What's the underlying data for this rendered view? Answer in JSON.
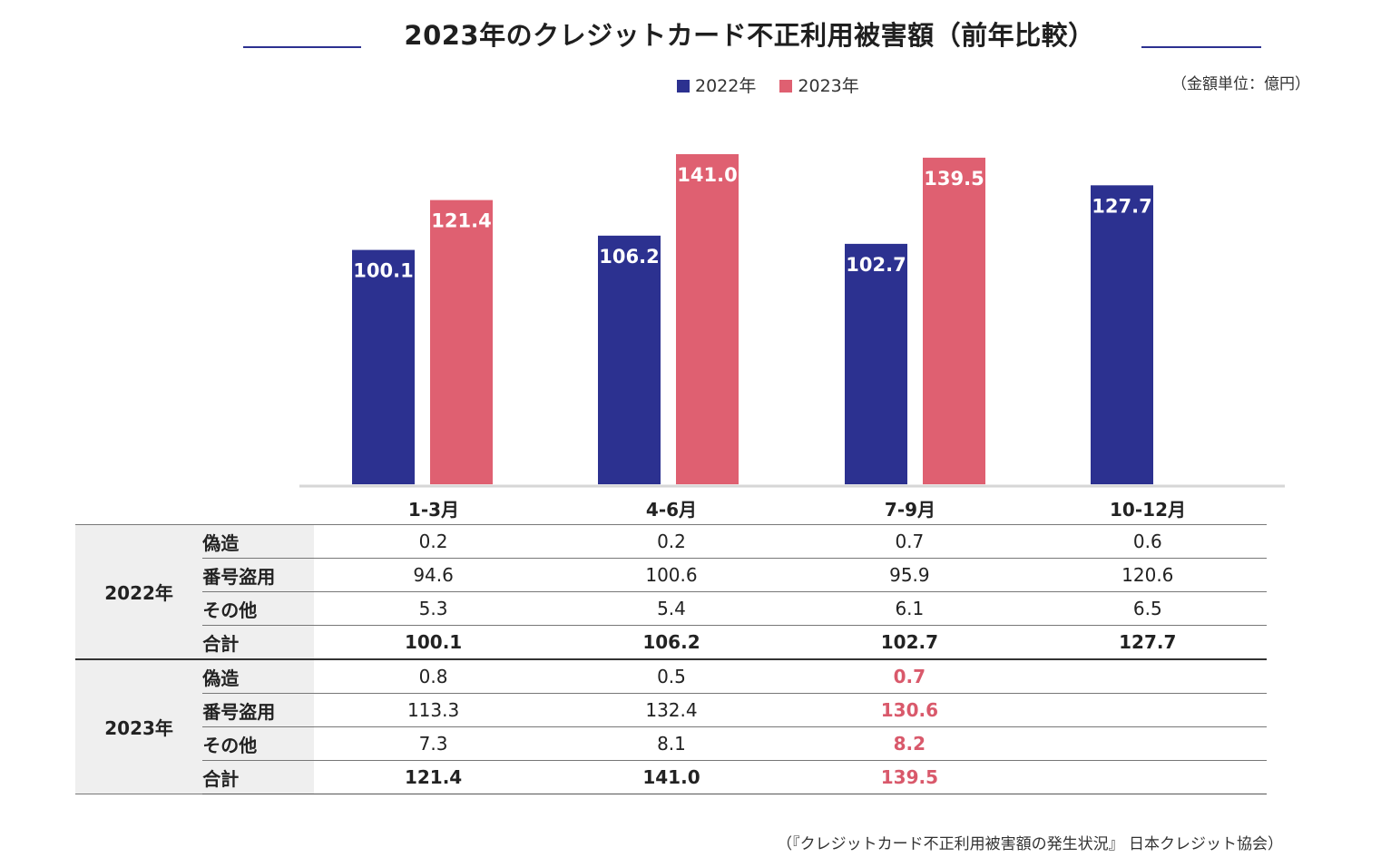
{
  "chart_data": {
    "type": "bar",
    "title": "2023年のクレジットカード不正利用被害額（前年比較）",
    "unit_note": "（金額単位：億円）",
    "categories": [
      "1-3月",
      "4-6月",
      "7-9月",
      "10-12月"
    ],
    "series": [
      {
        "name": "2022年",
        "color": "#2c3190",
        "values": [
          100.1,
          106.2,
          102.7,
          127.7
        ]
      },
      {
        "name": "2023年",
        "color": "#df6071",
        "values": [
          121.4,
          141.0,
          139.5,
          null
        ]
      }
    ],
    "value_labels": [
      [
        "100.1",
        "106.2",
        "102.7",
        "127.7"
      ],
      [
        "121.4",
        "141.0",
        "139.5",
        ""
      ]
    ],
    "ylim": [
      0,
      150
    ],
    "legend_position": "top-center",
    "grid": false
  },
  "table": {
    "groups": [
      {
        "year": "2022年",
        "rows": [
          {
            "label": "偽造",
            "values": [
              "0.2",
              "0.2",
              "0.7",
              "0.6"
            ]
          },
          {
            "label": "番号盗用",
            "values": [
              "94.6",
              "100.6",
              "95.9",
              "120.6"
            ]
          },
          {
            "label": "その他",
            "values": [
              "5.3",
              "5.4",
              "6.1",
              "6.5"
            ]
          },
          {
            "label": "合計",
            "values": [
              "100.1",
              "106.2",
              "102.7",
              "127.7"
            ]
          }
        ]
      },
      {
        "year": "2023年",
        "rows": [
          {
            "label": "偽造",
            "values": [
              "0.8",
              "0.5",
              "0.7",
              ""
            ]
          },
          {
            "label": "番号盗用",
            "values": [
              "113.3",
              "132.4",
              "130.6",
              ""
            ]
          },
          {
            "label": "その他",
            "values": [
              "7.3",
              "8.1",
              "8.2",
              ""
            ]
          },
          {
            "label": "合計",
            "values": [
              "121.4",
              "141.0",
              "139.5",
              ""
            ]
          }
        ]
      }
    ],
    "highlight_color": "#d9596b"
  },
  "source_note": "（『クレジットカード不正利用被害額の発生状況』 日本クレジット協会）"
}
